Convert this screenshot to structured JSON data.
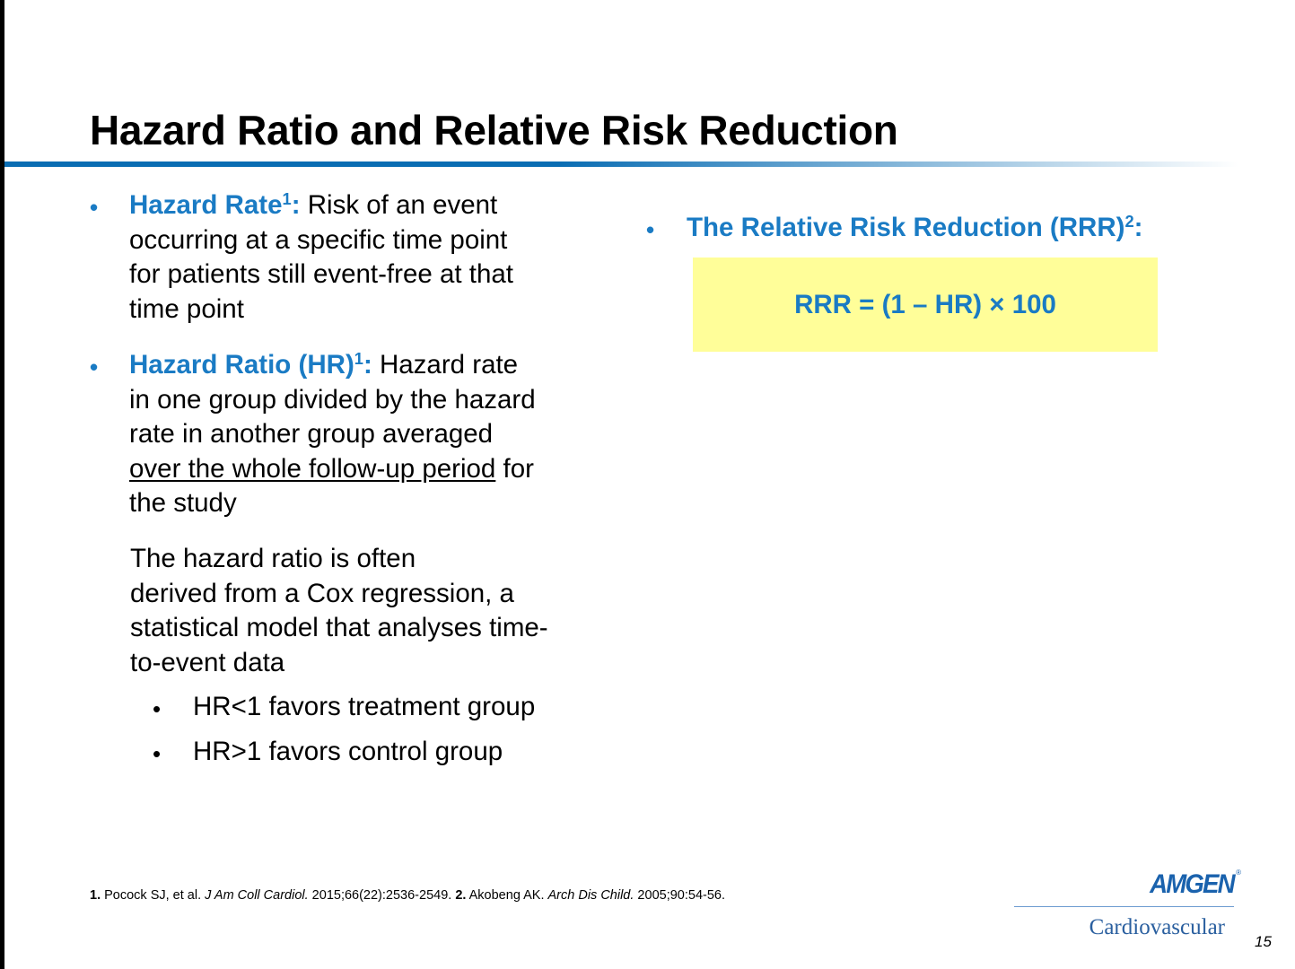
{
  "slide": {
    "title": "Hazard Ratio and Relative Risk Reduction",
    "page_number": "15"
  },
  "left": {
    "bullet_char": "•",
    "hazard_rate": {
      "term": "Hazard Rate",
      "ref": "1",
      "colon": ":",
      "line1": " Risk of an event",
      "line2": "occurring at a specific time point",
      "line3": "for patients still event-free at that",
      "line4": "time point"
    },
    "hazard_ratio": {
      "term": "Hazard Ratio (HR)",
      "ref": "1",
      "colon": ":",
      "line1": " Hazard rate",
      "line2": "in one group divided by the hazard",
      "line3": "rate in another group averaged",
      "line4_underlined": "over the whole follow-up period",
      "line4_rest": " for",
      "line5": "the study"
    },
    "cox_note": {
      "line1": "The hazard ratio is often",
      "line2": "derived from a Cox regression, a",
      "line3": "statistical model that analyses time-",
      "line4": "to-event data"
    },
    "sub_bullets": [
      "HR<1 favors treatment group",
      "HR>1 favors control group"
    ]
  },
  "right": {
    "rrr_heading": "The Relative Risk Reduction (RRR)",
    "rrr_ref": "2",
    "rrr_colon": ":",
    "formula": "RRR = (1 – HR) × 100"
  },
  "footnote": {
    "n1": "1.",
    "a1": " Pocock SJ, et al. ",
    "j1": "J Am Coll Cardiol.",
    "d1": " 2015;66(22):2536-2549. ",
    "n2": "2.",
    "a2": " Akobeng AK. ",
    "j2": "Arch Dis Child.",
    "d2": " 2005;90:54-56."
  },
  "logo": {
    "brand": "AMGEN",
    "reg": "®",
    "division": "Cardiovascular"
  },
  "colors": {
    "accent_blue": "#1a7bc4",
    "formula_box": "#fffe99"
  }
}
